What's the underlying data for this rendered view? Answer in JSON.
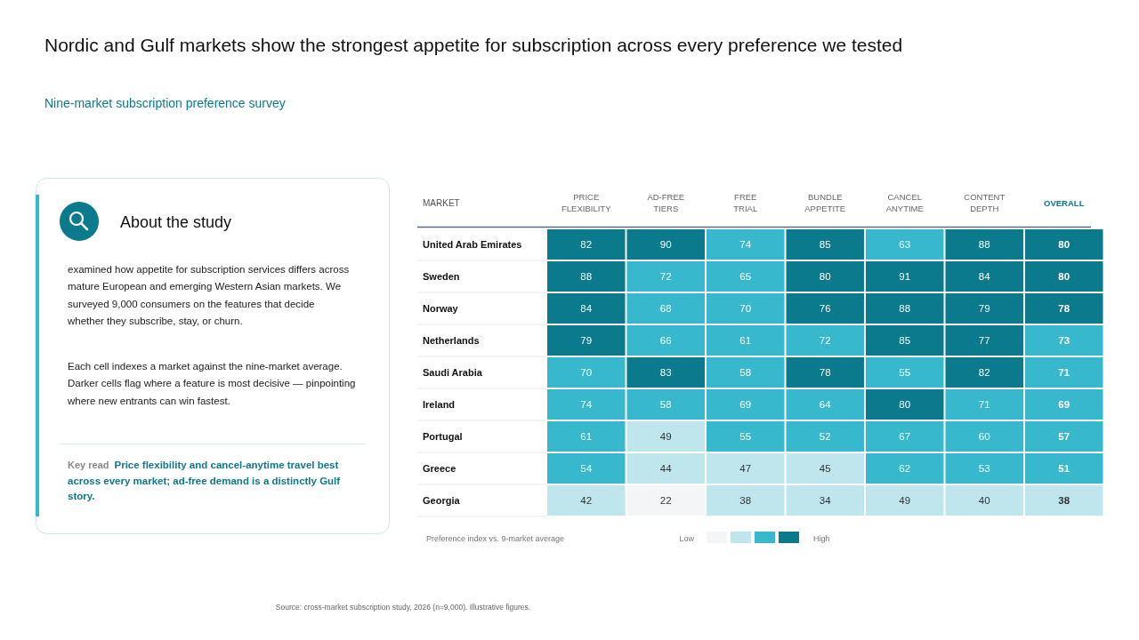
{
  "chart_data": {
    "type": "heatmap",
    "title": "Nordic and Gulf markets show the strongest appetite for subscription across every preference we tested",
    "subtitle": "Nine-market subscription preference survey",
    "ylabel": "MARKET",
    "clabel": "Preference index vs. 9-market average",
    "categories": [
      "PRICE FLEXIBILITY",
      "AD-FREE TIERS",
      "FREE TRIAL",
      "BUNDLE APPETITE",
      "CANCEL ANYTIME",
      "CONTENT DEPTH",
      "OVERALL"
    ],
    "y_categories": [
      "United Arab Emirates",
      "Sweden",
      "Norway",
      "Netherlands",
      "Saudi Arabia",
      "Ireland",
      "Portugal",
      "Greece",
      "Georgia"
    ],
    "cells": [
      [
        82,
        90,
        74,
        85,
        63,
        88,
        80
      ],
      [
        88,
        72,
        65,
        80,
        91,
        84,
        80
      ],
      [
        84,
        68,
        70,
        76,
        88,
        79,
        78
      ],
      [
        79,
        66,
        61,
        72,
        85,
        77,
        73
      ],
      [
        70,
        83,
        58,
        78,
        55,
        82,
        71
      ],
      [
        74,
        58,
        69,
        64,
        80,
        71,
        69
      ],
      [
        61,
        49,
        55,
        52,
        67,
        60,
        57
      ],
      [
        54,
        44,
        47,
        45,
        62,
        53,
        51
      ],
      [
        42,
        22,
        38,
        34,
        49,
        40,
        38
      ]
    ],
    "data_labels": true,
    "annotations": [
      "About the study",
      "examined how appetite for subscription services differs across mature European and emerging Western Asian markets. We surveyed 9,000 consumers on the features that decide whether they subscribe, stay, or churn.",
      "Each cell indexes a market against the nine-market average. Darker cells flag where a feature is most decisive — pinpointing where new entrants can win fastest.",
      "Key read",
      "Price flexibility and cancel-anytime travel best across every market; ad-free demand is a distinctly Gulf story.",
      "Source: cross-market subscription study, 2026 (n=9,000). Illustrative figures.",
      "Low",
      "High"
    ]
  }
}
